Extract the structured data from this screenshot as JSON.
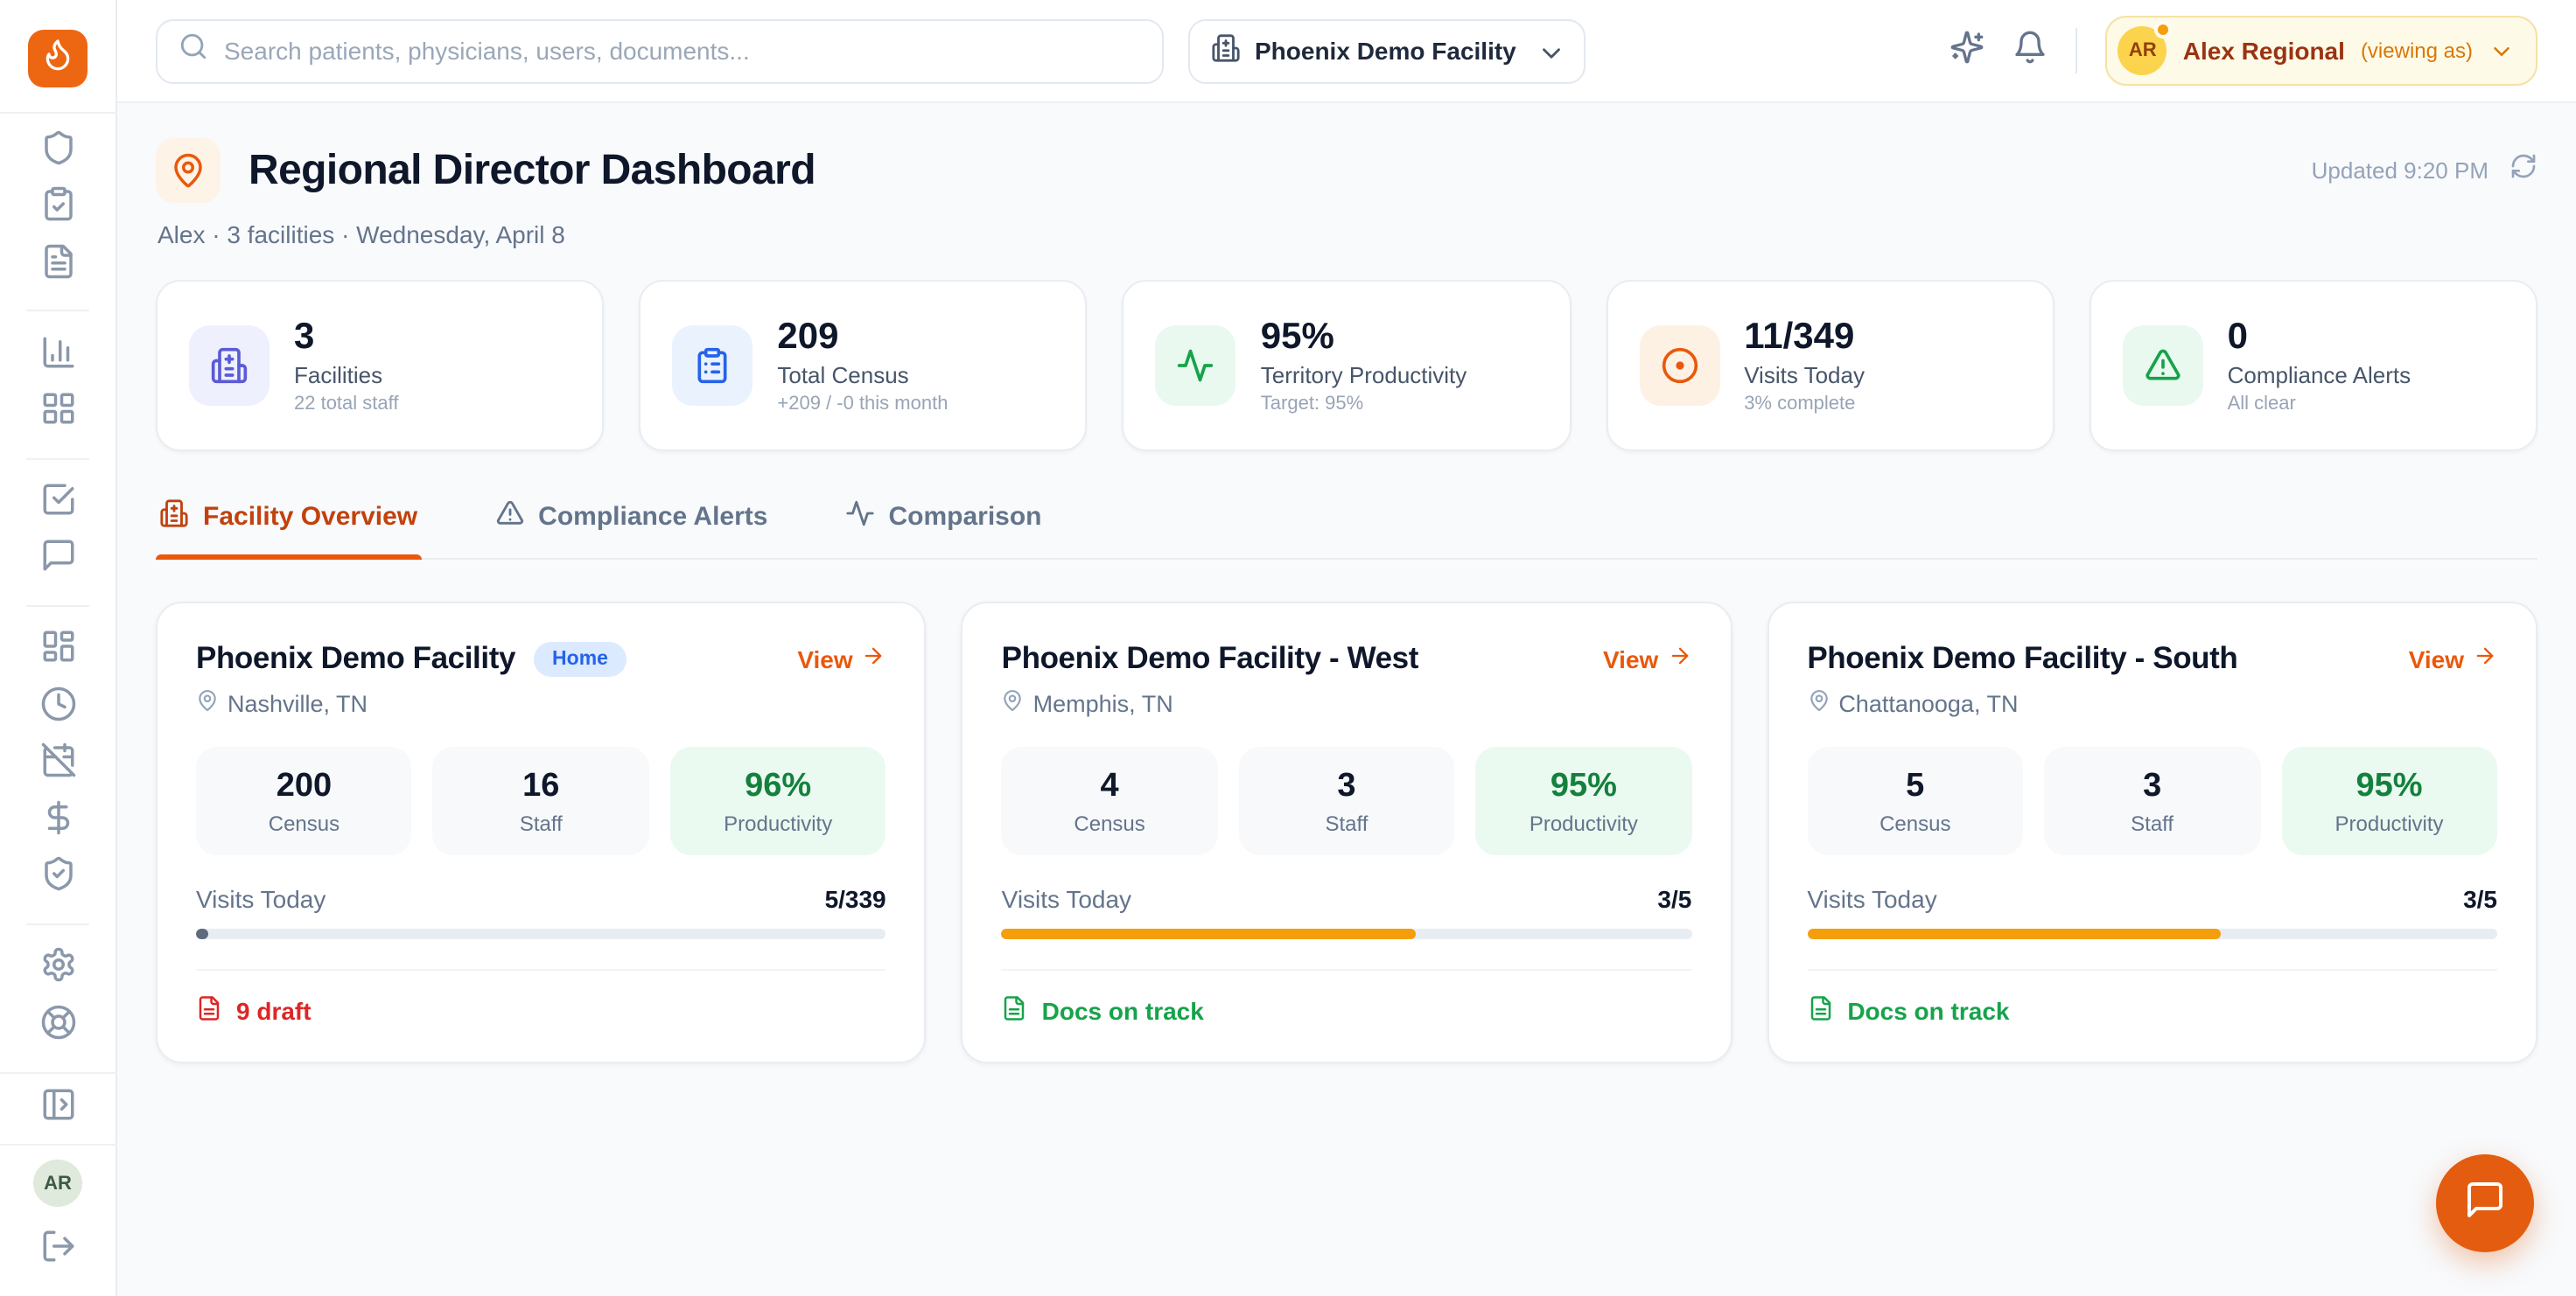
{
  "colors": {
    "accent": "#ea580c",
    "accent_dark": "#c2410c",
    "amber": "#f59e0b",
    "green": "#16a34a",
    "red": "#dc2626",
    "indigo": "#5b5bd6",
    "blue": "#2563eb",
    "page_bg": "#f8fafc",
    "card_bg": "#ffffff"
  },
  "sidebar": {
    "logo_icon": "flame-icon",
    "nav_icons": [
      "shield-icon",
      "clipboard-check-icon",
      "file-text-icon",
      "chart-column-icon",
      "layout-grid-icon",
      "check-square-icon",
      "message-square-icon",
      "layout-dashboard-icon",
      "clock-icon",
      "calendar-off-icon",
      "dollar-sign-icon",
      "shield-check-icon",
      "settings-icon",
      "life-buoy-icon",
      "panel-toggle-icon",
      "log-out-icon"
    ],
    "avatar_initials": "AR"
  },
  "topbar": {
    "search_placeholder": "Search patients, physicians, users, documents...",
    "facility_selector": "Phoenix Demo Facility",
    "icons": [
      "sparkles-icon",
      "bell-icon"
    ],
    "user": {
      "initials": "AR",
      "name": "Alex Regional",
      "suffix": "(viewing as)"
    }
  },
  "header": {
    "title": "Regional Director Dashboard",
    "subtitle": "Alex · 3 facilities · Wednesday, April 8",
    "updated": "Updated 9:20 PM"
  },
  "stats": [
    {
      "value": "3",
      "label": "Facilities",
      "sub": "22 total staff",
      "icon": "building-icon"
    },
    {
      "value": "209",
      "label": "Total Census",
      "sub": "+209 / -0 this month",
      "icon": "clipboard-list-icon"
    },
    {
      "value": "95%",
      "label": "Territory Productivity",
      "sub": "Target: 95%",
      "icon": "activity-icon"
    },
    {
      "value": "11/349",
      "label": "Visits Today",
      "sub": "3% complete",
      "icon": "target-icon"
    },
    {
      "value": "0",
      "label": "Compliance Alerts",
      "sub": "All clear",
      "icon": "alert-triangle-icon"
    }
  ],
  "tabs": [
    {
      "label": "Facility Overview",
      "icon": "hospital-icon",
      "active": true
    },
    {
      "label": "Compliance Alerts",
      "icon": "alert-triangle-icon",
      "active": false
    },
    {
      "label": "Comparison",
      "icon": "activity-icon",
      "active": false
    }
  ],
  "shared_labels": {
    "census": "Census",
    "staff": "Staff",
    "productivity": "Productivity",
    "visits": "Visits Today",
    "view": "View"
  },
  "facilities": [
    {
      "name": "Phoenix Demo Facility",
      "badge": "Home",
      "location": "Nashville, TN",
      "census": "200",
      "staff": "16",
      "productivity": "96%",
      "visits_value": "5/339",
      "progress_pct": 1.8,
      "progress_color": "#5f6b7d",
      "status": "9 draft",
      "status_color": "#dc2626"
    },
    {
      "name": "Phoenix Demo Facility - West",
      "badge": null,
      "location": "Memphis, TN",
      "census": "4",
      "staff": "3",
      "productivity": "95%",
      "visits_value": "3/5",
      "progress_pct": 60,
      "progress_color": "#f59e0b",
      "status": "Docs on track",
      "status_color": "#16a34a"
    },
    {
      "name": "Phoenix Demo Facility - South",
      "badge": null,
      "location": "Chattanooga, TN",
      "census": "5",
      "staff": "3",
      "productivity": "95%",
      "visits_value": "3/5",
      "progress_pct": 60,
      "progress_color": "#f59e0b",
      "status": "Docs on track",
      "status_color": "#16a34a"
    }
  ]
}
